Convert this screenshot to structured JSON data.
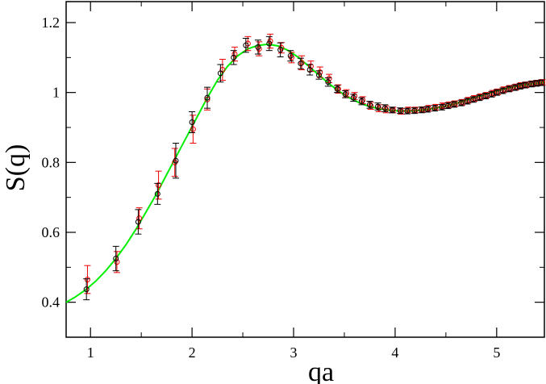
{
  "chart_data": {
    "type": "scatter",
    "title": "",
    "xlabel": "qa",
    "ylabel": "S(q)",
    "xlim": [
      0.76,
      5.47
    ],
    "ylim": [
      0.3,
      1.26
    ],
    "xticks": [
      1,
      2,
      3,
      4,
      5
    ],
    "xtick_labels": [
      "1",
      "2",
      "3",
      "4",
      "5"
    ],
    "yticks": [
      0.4,
      0.6,
      0.8,
      1.0,
      1.2
    ],
    "ytick_labels": [
      "0.4",
      "0.6",
      "0.8",
      "1",
      "1.2"
    ],
    "grid": false,
    "legend": "none",
    "colors": {
      "curve": "#00ee00",
      "series_a": "#000000",
      "series_b": "#ee0000"
    },
    "series": [
      {
        "style": "curve",
        "x": [
          0.76,
          0.85,
          0.95,
          1.05,
          1.15,
          1.25,
          1.35,
          1.45,
          1.55,
          1.65,
          1.75,
          1.85,
          1.95,
          2.05,
          2.15,
          2.25,
          2.35,
          2.45,
          2.55,
          2.65,
          2.75,
          2.85,
          2.95,
          3.05,
          3.15,
          3.25,
          3.35,
          3.45,
          3.55,
          3.65,
          3.75,
          3.85,
          3.95,
          4.05,
          4.15,
          4.25,
          4.35,
          4.45,
          4.55,
          4.65,
          4.75,
          4.85,
          4.95,
          5.05,
          5.15,
          5.25,
          5.35,
          5.47
        ],
        "y": [
          0.4,
          0.415,
          0.435,
          0.46,
          0.49,
          0.525,
          0.565,
          0.61,
          0.66,
          0.71,
          0.765,
          0.82,
          0.875,
          0.93,
          0.985,
          1.035,
          1.075,
          1.105,
          1.125,
          1.135,
          1.138,
          1.133,
          1.12,
          1.1,
          1.075,
          1.05,
          1.025,
          1.003,
          0.985,
          0.97,
          0.96,
          0.953,
          0.949,
          0.947,
          0.947,
          0.949,
          0.953,
          0.958,
          0.965,
          0.973,
          0.982,
          0.991,
          1.0,
          1.008,
          1.015,
          1.021,
          1.025,
          1.029
        ]
      },
      {
        "style": "markers-errorbars",
        "x": [
          0.96,
          1.25,
          1.47,
          1.66,
          1.84,
          2.0,
          2.15,
          2.28,
          2.41,
          2.53,
          2.65,
          2.76,
          2.87,
          2.97,
          3.07,
          3.16,
          3.25,
          3.34,
          3.43,
          3.51,
          3.59,
          3.67,
          3.75,
          3.83,
          3.9,
          3.97,
          4.05,
          4.12,
          4.19,
          4.26,
          4.32,
          4.39,
          4.46,
          4.52,
          4.58,
          4.65,
          4.71,
          4.77,
          4.83,
          4.89,
          4.95,
          5.0,
          5.06,
          5.12,
          5.18,
          5.23,
          5.28,
          5.34,
          5.39,
          5.44
        ],
        "y": [
          0.437,
          0.525,
          0.63,
          0.71,
          0.805,
          0.915,
          0.985,
          1.055,
          1.1,
          1.135,
          1.13,
          1.14,
          1.122,
          1.105,
          1.083,
          1.065,
          1.05,
          1.03,
          1.01,
          0.995,
          0.985,
          0.975,
          0.965,
          0.96,
          0.955,
          0.95,
          0.948,
          0.947,
          0.948,
          0.95,
          0.952,
          0.955,
          0.958,
          0.962,
          0.966,
          0.97,
          0.975,
          0.98,
          0.985,
          0.99,
          0.995,
          1.0,
          1.005,
          1.01,
          1.014,
          1.018,
          1.021,
          1.024,
          1.026,
          1.028
        ],
        "err": [
          0.03,
          0.035,
          0.035,
          0.03,
          0.05,
          0.03,
          0.03,
          0.025,
          0.02,
          0.02,
          0.02,
          0.02,
          0.02,
          0.015,
          0.015,
          0.015,
          0.012,
          0.012,
          0.01,
          0.01,
          0.01,
          0.01,
          0.01,
          0.01,
          0.01,
          0.008,
          0.008,
          0.008,
          0.008,
          0.008,
          0.008,
          0.008,
          0.008,
          0.008,
          0.008,
          0.008,
          0.008,
          0.008,
          0.008,
          0.008,
          0.008,
          0.008,
          0.008,
          0.008,
          0.008,
          0.008,
          0.008,
          0.008,
          0.008,
          0.008
        ]
      },
      {
        "style": "markers-errorbars",
        "x": [
          0.97,
          1.26,
          1.48,
          1.67,
          1.83,
          2.01,
          2.15,
          2.3,
          2.42,
          2.55,
          2.66,
          2.77,
          2.88,
          2.98,
          3.08,
          3.17,
          3.26,
          3.35,
          3.44,
          3.52,
          3.6,
          3.68,
          3.76,
          3.84,
          3.91,
          3.98,
          4.06,
          4.13,
          4.2,
          4.27,
          4.33,
          4.4,
          4.47,
          4.53,
          4.59,
          4.66,
          4.72,
          4.78,
          4.84,
          4.9,
          4.96,
          5.01,
          5.07,
          5.13,
          5.19,
          5.24,
          5.29,
          5.35,
          5.4,
          5.45
        ],
        "y": [
          0.465,
          0.515,
          0.64,
          0.735,
          0.8,
          0.895,
          0.98,
          1.065,
          1.11,
          1.14,
          1.125,
          1.147,
          1.128,
          1.1,
          1.085,
          1.075,
          1.058,
          1.04,
          1.01,
          0.998,
          0.99,
          0.978,
          0.962,
          0.955,
          0.952,
          0.95,
          0.946,
          0.95,
          0.95,
          0.951,
          0.955,
          0.958,
          0.962,
          0.965,
          0.968,
          0.972,
          0.978,
          0.983,
          0.988,
          0.992,
          0.998,
          1.002,
          1.008,
          1.012,
          1.016,
          1.02,
          1.022,
          1.025,
          1.027,
          1.029
        ],
        "err": [
          0.04,
          0.03,
          0.03,
          0.04,
          0.04,
          0.04,
          0.03,
          0.03,
          0.02,
          0.02,
          0.02,
          0.02,
          0.015,
          0.015,
          0.02,
          0.015,
          0.015,
          0.012,
          0.012,
          0.01,
          0.01,
          0.01,
          0.01,
          0.01,
          0.01,
          0.008,
          0.008,
          0.008,
          0.008,
          0.008,
          0.008,
          0.008,
          0.008,
          0.008,
          0.008,
          0.008,
          0.008,
          0.008,
          0.008,
          0.008,
          0.008,
          0.008,
          0.008,
          0.008,
          0.008,
          0.008,
          0.008,
          0.008,
          0.008,
          0.008
        ]
      }
    ]
  }
}
